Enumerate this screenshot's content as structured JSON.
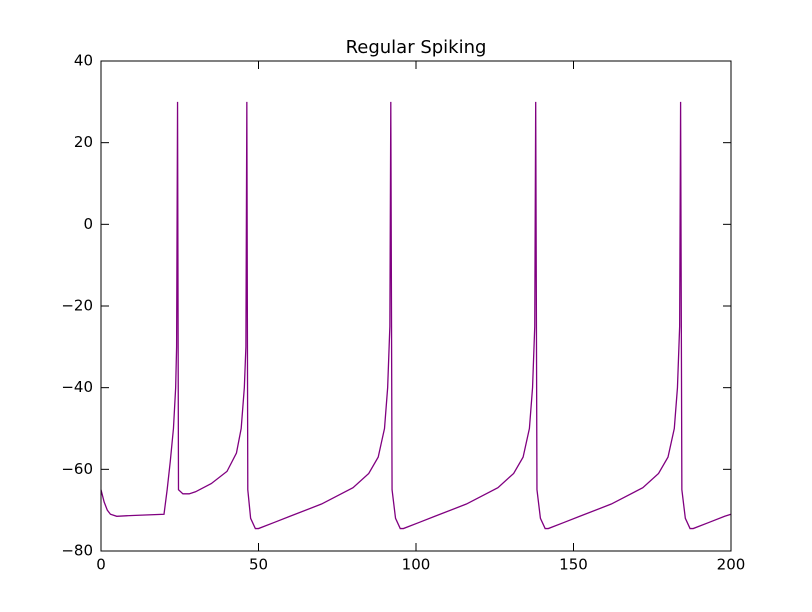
{
  "chart_data": {
    "type": "line",
    "title": "Regular Spiking",
    "x": [
      0,
      1,
      2,
      3,
      5,
      10,
      20,
      21,
      22,
      23,
      23.7,
      24,
      24.3,
      24.6,
      26,
      28,
      30,
      35,
      40,
      43,
      44.5,
      45.5,
      46,
      46.3,
      46.6,
      47.5,
      49,
      50,
      55,
      60,
      70,
      80,
      85,
      88,
      90,
      91,
      91.7,
      92,
      92.4,
      93.5,
      95,
      96,
      101,
      106,
      116,
      126,
      131,
      134,
      136,
      137,
      137.7,
      138,
      138.4,
      139.5,
      141,
      142,
      147,
      152,
      162,
      172,
      177,
      180,
      182,
      183,
      183.7,
      184,
      184.4,
      185.5,
      187,
      188,
      193,
      198,
      200
    ],
    "series": [
      {
        "color": "#800080",
        "values": [
          -65,
          -68,
          -70,
          -71,
          -71.5,
          -71.3,
          -71,
          -65,
          -58,
          -50,
          -40,
          -30,
          30,
          -65,
          -66,
          -66,
          -65.5,
          -63.5,
          -60.5,
          -56,
          -50,
          -40,
          -30,
          30,
          -65,
          -72,
          -74.5,
          -74.5,
          -73,
          -71.5,
          -68.5,
          -64.5,
          -61,
          -57,
          -50,
          -40,
          -25,
          30,
          -65,
          -72,
          -74.5,
          -74.5,
          -73,
          -71.5,
          -68.5,
          -64.5,
          -61,
          -57,
          -50,
          -40,
          -25,
          30,
          -65,
          -72,
          -74.5,
          -74.5,
          -73,
          -71.5,
          -68.5,
          -64.5,
          -61,
          -57,
          -50,
          -40,
          -25,
          30,
          -65,
          -72,
          -74.5,
          -74.5,
          -73,
          -71.5,
          -71
        ]
      }
    ],
    "xlim": [
      0,
      200
    ],
    "xticks": [
      0,
      50,
      100,
      150,
      200
    ],
    "ylim": [
      -80,
      40
    ],
    "yticks": [
      {
        "value": -80,
        "label": "−80"
      },
      {
        "value": -60,
        "label": "−60"
      },
      {
        "value": -40,
        "label": "−40"
      },
      {
        "value": -20,
        "label": "−20"
      },
      0,
      20,
      40
    ],
    "grid": false
  }
}
